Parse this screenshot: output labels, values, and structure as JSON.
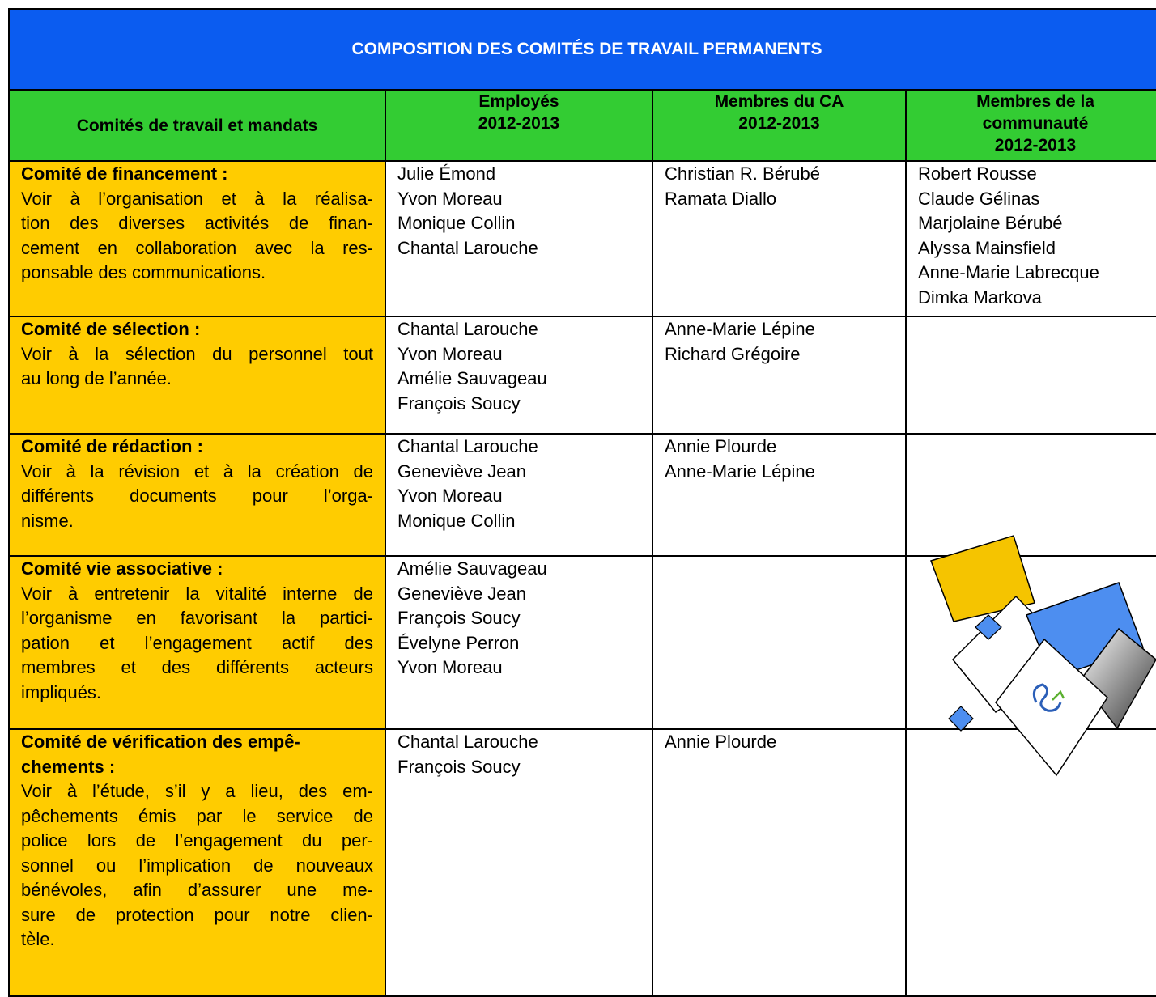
{
  "title": "COMPOSITION DES COMITÉS DE TRAVAIL PERMANENTS",
  "headers": [
    [
      "Comités de travail et mandats"
    ],
    [
      "Employés",
      "2012-2013"
    ],
    [
      "Membres du CA",
      "2012-2013"
    ],
    [
      "Membres de la",
      "communauté",
      "2012-2013"
    ]
  ],
  "rows": [
    {
      "name": [
        "Comité de financement :"
      ],
      "mandate": [
        "Voir à l’organisation et à la réalisa-",
        "tion des diverses activités de finan-",
        "cement en collaboration avec la res-",
        "ponsable des communications."
      ],
      "employees": [
        "Julie Émond",
        "Yvon Moreau",
        "Monique Collin",
        "Chantal Larouche"
      ],
      "board": [
        "Christian R. Bérubé",
        "Ramata Diallo"
      ],
      "community": [
        "Robert Rousse",
        "Claude Gélinas",
        "Marjolaine Bérubé",
        "Alyssa Mainsfield",
        "Anne-Marie Labrecque",
        "Dimka Markova"
      ]
    },
    {
      "name": [
        "Comité de sélection :"
      ],
      "mandate": [
        "Voir à la sélection du personnel tout",
        "au long de l’année."
      ],
      "employees": [
        "Chantal Larouche",
        "Yvon Moreau",
        "Amélie Sauvageau",
        "François Soucy"
      ],
      "board": [
        "Anne-Marie Lépine",
        "Richard Grégoire"
      ],
      "community": []
    },
    {
      "name": [
        "Comité de rédaction :"
      ],
      "mandate": [
        "Voir à la révision et à la création de",
        "différents documents pour l’orga-",
        "nisme."
      ],
      "employees": [
        "Chantal Larouche",
        "Geneviève Jean",
        "Yvon Moreau",
        "Monique Collin"
      ],
      "board": [
        "Annie Plourde",
        "Anne-Marie Lépine"
      ],
      "community": []
    },
    {
      "name": [
        "Comité vie associative :"
      ],
      "mandate": [
        "Voir à entretenir la vitalité interne de",
        "l’organisme en favorisant la partici-",
        "pation et l’engagement actif des",
        "membres et des différents acteurs",
        "impliqués."
      ],
      "employees": [
        "Amélie Sauvageau",
        "Geneviève Jean",
        "François Soucy",
        "Évelyne Perron",
        "Yvon Moreau"
      ],
      "board": [],
      "community": []
    },
    {
      "name": [
        "Comité de vérification des empê-",
        "chements :"
      ],
      "mandate": [
        "Voir à l’étude, s’il y a lieu, des em-",
        "pêchements émis par le service de",
        "police lors de l’engagement du per-",
        "sonnel ou l’implication de nouveaux",
        "bénévoles, afin d’assurer une me-",
        "sure de protection pour notre clien-",
        "tèle."
      ],
      "employees": [
        "Chantal Larouche",
        "François Soucy"
      ],
      "board": [
        "Annie Plourde"
      ],
      "community": []
    }
  ]
}
